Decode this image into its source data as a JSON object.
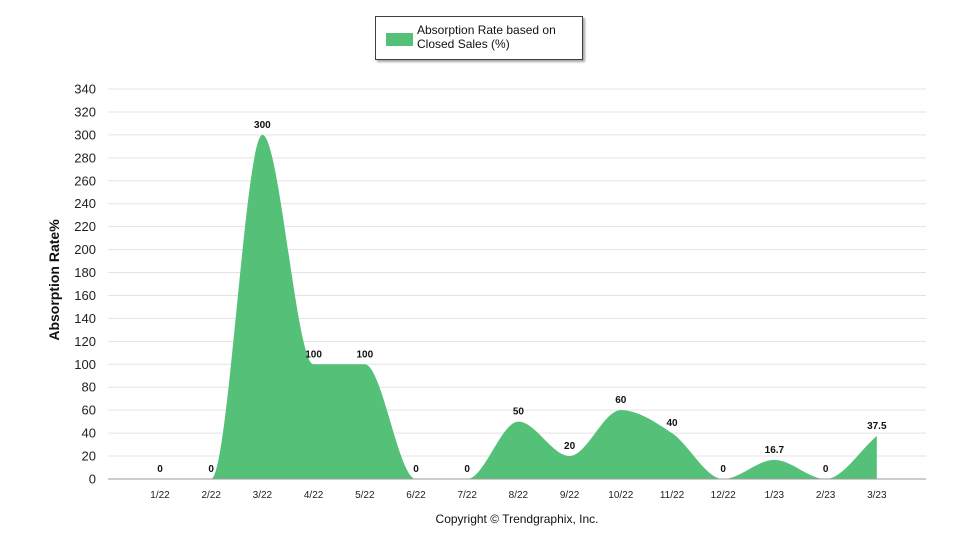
{
  "chart_data": {
    "type": "area",
    "categories": [
      "1/22",
      "2/22",
      "3/22",
      "4/22",
      "5/22",
      "6/22",
      "7/22",
      "8/22",
      "9/22",
      "10/22",
      "11/22",
      "12/22",
      "1/23",
      "2/23",
      "3/23"
    ],
    "series": [
      {
        "name": "Absorption Rate based on Closed Sales (%)",
        "values": [
          0,
          0,
          300,
          100,
          100,
          0,
          0,
          50,
          20,
          60,
          40,
          0,
          16.7,
          0,
          37.5
        ],
        "data_labels": [
          "0",
          "0",
          "300",
          "100",
          "100",
          "0",
          "0",
          "50",
          "20",
          "60",
          "40",
          "0",
          "16.7",
          "0",
          "37.5"
        ],
        "color": "#55c078"
      }
    ],
    "xlabel": "",
    "ylabel": "Absorption Rate%",
    "ylim": [
      0,
      340
    ],
    "yticks": [
      0,
      20,
      40,
      60,
      80,
      100,
      120,
      140,
      160,
      180,
      200,
      220,
      240,
      260,
      280,
      300,
      320,
      340
    ],
    "grid": true,
    "legend_position": "top-center",
    "smoothed": true
  },
  "footer": {
    "copyright": "Copyright © Trendgraphix, Inc."
  }
}
